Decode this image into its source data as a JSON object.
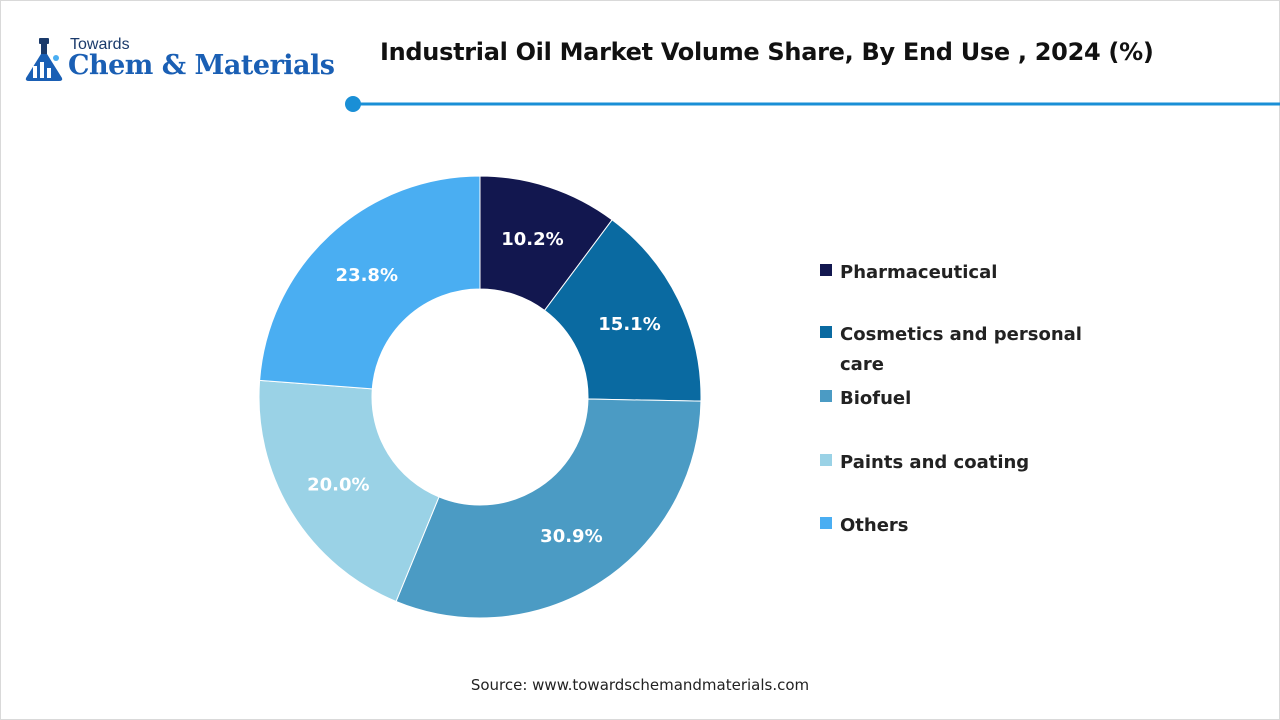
{
  "brand": {
    "small": "Towards",
    "main": "Chem & Materials",
    "icon": "flask-logo-icon",
    "color": "#1a5fb4"
  },
  "accent_color": "#1a8fd6",
  "chart_data": {
    "type": "pie",
    "variant": "donut",
    "title": "Industrial Oil Market Volume Share, By End Use , 2024 (%)",
    "categories": [
      "Pharmaceutical",
      "Cosmetics and personal care",
      "Biofuel",
      "Paints and coating",
      "Others"
    ],
    "values": [
      10.2,
      15.1,
      30.9,
      20.0,
      23.8
    ],
    "labels": [
      "10.2%",
      "15.1%",
      "30.9%",
      "20.0%",
      "23.8%"
    ],
    "colors": [
      "#12174f",
      "#0a6aa1",
      "#4b9bc4",
      "#9ad2e6",
      "#4aaef2"
    ],
    "legend_position": "right",
    "unit": "%"
  },
  "source": "Source: www.towardschemandmaterials.com"
}
